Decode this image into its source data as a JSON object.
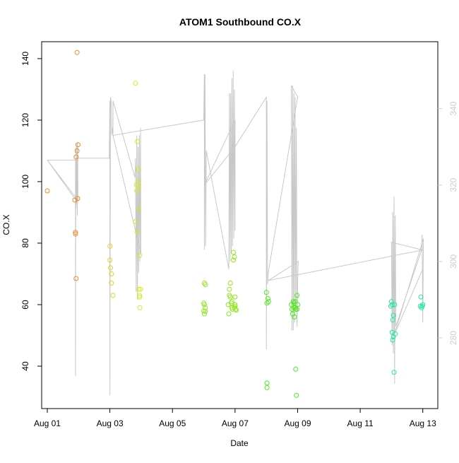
{
  "chart_data": {
    "type": "scatter",
    "title": "ATOM1 Southbound CO.X",
    "xlabel": "Date",
    "ylabel": "CO.X",
    "x_ticks": [
      {
        "day": 1,
        "label": "Aug 01"
      },
      {
        "day": 3,
        "label": "Aug 03"
      },
      {
        "day": 5,
        "label": "Aug 05"
      },
      {
        "day": 7,
        "label": "Aug 07"
      },
      {
        "day": 9,
        "label": "Aug 09"
      },
      {
        "day": 11,
        "label": "Aug 11"
      },
      {
        "day": 13,
        "label": "Aug 13"
      }
    ],
    "xlim": [
      0.82,
      13.48
    ],
    "ylim": [
      26.2,
      145.5
    ],
    "y_ticks": [
      40,
      60,
      80,
      100,
      120,
      140
    ],
    "y2lim": [
      261.5,
      357.5
    ],
    "y2_ticks": [
      280,
      300,
      320,
      340
    ],
    "y2_color": "#cccccc",
    "line_color": "#c8c8c8",
    "grid": false,
    "series": [
      {
        "color": "#f08a2a",
        "points": [
          [
            1.0,
            97
          ],
          [
            1.88,
            94
          ],
          [
            1.9,
            83.5
          ],
          [
            1.9,
            83
          ],
          [
            1.92,
            68.5
          ],
          [
            1.92,
            108
          ],
          [
            1.95,
            110
          ],
          [
            1.95,
            142
          ],
          [
            1.97,
            94.5
          ],
          [
            1.98,
            112
          ]
        ]
      },
      {
        "color": "#eccf1e",
        "points": [
          [
            3.0,
            79
          ],
          [
            3.0,
            74.5
          ],
          [
            3.02,
            72
          ],
          [
            3.05,
            70
          ],
          [
            3.05,
            67
          ],
          [
            3.1,
            63
          ]
        ]
      },
      {
        "color": "#d4ec1e",
        "points": [
          [
            3.82,
            132
          ],
          [
            3.82,
            87
          ],
          [
            3.85,
            99
          ],
          [
            3.86,
            97
          ],
          [
            3.88,
            83.5
          ],
          [
            3.88,
            113
          ],
          [
            3.9,
            104
          ],
          [
            3.92,
            100
          ],
          [
            3.92,
            98
          ],
          [
            3.93,
            91
          ],
          [
            3.95,
            76
          ],
          [
            3.93,
            65
          ],
          [
            3.95,
            63
          ],
          [
            3.95,
            62.5
          ],
          [
            3.96,
            59
          ],
          [
            3.98,
            65
          ]
        ]
      },
      {
        "color": "#8fe81e",
        "points": [
          [
            6.0,
            60.5
          ],
          [
            6.0,
            58
          ],
          [
            6.02,
            60
          ],
          [
            6.02,
            57
          ],
          [
            6.02,
            67
          ],
          [
            6.05,
            59
          ],
          [
            6.05,
            66.5
          ],
          [
            6.05,
            57.8
          ],
          [
            6.78,
            60
          ],
          [
            6.8,
            57
          ],
          [
            6.82,
            63
          ],
          [
            6.82,
            65
          ],
          [
            6.85,
            62.5
          ],
          [
            6.85,
            67
          ],
          [
            6.88,
            60.5
          ],
          [
            6.9,
            59
          ],
          [
            6.9,
            61
          ],
          [
            6.92,
            58.5
          ],
          [
            6.95,
            74.5
          ],
          [
            6.95,
            77
          ],
          [
            6.98,
            59
          ],
          [
            6.98,
            75.5
          ],
          [
            7.0,
            59.5
          ],
          [
            7.0,
            60
          ],
          [
            7.0,
            62.5
          ],
          [
            7.02,
            58.5
          ],
          [
            7.04,
            58.2
          ]
        ]
      },
      {
        "color": "#4ee81e",
        "points": [
          [
            8.0,
            64
          ],
          [
            8.02,
            60.5
          ],
          [
            8.02,
            34.5
          ],
          [
            8.02,
            33
          ],
          [
            8.05,
            62
          ],
          [
            8.07,
            61
          ],
          [
            8.8,
            60
          ],
          [
            8.82,
            58.5
          ],
          [
            8.84,
            57
          ],
          [
            8.86,
            61
          ],
          [
            8.88,
            59
          ],
          [
            8.88,
            60.5
          ],
          [
            8.9,
            56
          ],
          [
            8.92,
            59
          ],
          [
            8.92,
            61
          ],
          [
            8.94,
            58.5
          ],
          [
            8.94,
            39
          ],
          [
            8.96,
            30.5
          ],
          [
            8.98,
            63
          ],
          [
            8.98,
            58.5
          ],
          [
            9.0,
            60
          ]
        ]
      },
      {
        "color": "#1ee8a8",
        "points": [
          [
            11.98,
            59.5
          ],
          [
            12.0,
            61
          ],
          [
            12.02,
            60
          ],
          [
            12.02,
            51
          ],
          [
            12.04,
            55
          ],
          [
            12.04,
            48.5
          ],
          [
            12.06,
            56.5
          ],
          [
            12.06,
            49.5
          ],
          [
            12.08,
            38
          ],
          [
            12.1,
            60
          ],
          [
            12.12,
            50.5
          ],
          [
            12.92,
            59.5
          ],
          [
            12.94,
            62.5
          ],
          [
            12.96,
            59
          ],
          [
            12.98,
            59.5
          ],
          [
            13.0,
            60
          ]
        ]
      }
    ],
    "line_y2": [
      [
        1.0,
        326.5
      ],
      [
        1.02,
        326.5
      ],
      [
        1.9,
        326.5
      ],
      [
        1.9,
        270
      ],
      [
        1.91,
        316
      ],
      [
        1.92,
        330
      ],
      [
        1.92,
        314
      ],
      [
        1.93,
        327
      ],
      [
        1.94,
        315
      ],
      [
        1.95,
        331
      ],
      [
        1.96,
        312
      ],
      [
        1.97,
        331
      ],
      [
        1.98,
        316
      ],
      [
        1.0,
        326.5
      ],
      [
        1.92,
        316
      ],
      [
        1.98,
        327
      ],
      [
        2.98,
        327
      ],
      [
        3.0,
        342
      ],
      [
        3.0,
        265
      ],
      [
        3.02,
        343
      ],
      [
        3.04,
        342
      ],
      [
        3.05,
        340
      ],
      [
        3.06,
        333
      ],
      [
        3.08,
        335
      ],
      [
        3.1,
        333
      ],
      [
        3.1,
        342
      ],
      [
        3.8,
        322
      ],
      [
        3.82,
        327
      ],
      [
        3.84,
        292
      ],
      [
        3.86,
        333
      ],
      [
        3.88,
        290
      ],
      [
        3.9,
        330
      ],
      [
        3.92,
        297
      ],
      [
        3.94,
        333
      ],
      [
        3.96,
        300
      ],
      [
        3.98,
        335
      ],
      [
        3.99,
        302
      ],
      [
        3.1,
        333
      ],
      [
        6.0,
        337
      ],
      [
        6.02,
        349
      ],
      [
        6.02,
        303
      ],
      [
        6.04,
        349
      ],
      [
        6.06,
        304
      ],
      [
        6.08,
        329
      ],
      [
        6.08,
        329
      ],
      [
        6.8,
        298
      ],
      [
        6.82,
        344
      ],
      [
        6.84,
        300
      ],
      [
        6.86,
        344
      ],
      [
        6.88,
        302
      ],
      [
        6.9,
        348
      ],
      [
        6.92,
        304
      ],
      [
        6.94,
        350
      ],
      [
        6.96,
        306
      ],
      [
        6.98,
        345
      ],
      [
        7.0,
        308
      ],
      [
        7.0,
        337
      ],
      [
        6.02,
        320
      ],
      [
        7.0,
        330
      ],
      [
        8.0,
        343
      ],
      [
        8.0,
        277
      ],
      [
        8.02,
        342
      ],
      [
        8.04,
        294
      ],
      [
        8.06,
        297
      ],
      [
        9.0,
        343
      ],
      [
        8.8,
        346
      ],
      [
        8.82,
        282
      ],
      [
        8.84,
        346
      ],
      [
        8.86,
        282
      ],
      [
        8.88,
        344
      ],
      [
        8.9,
        284
      ],
      [
        8.92,
        343
      ],
      [
        8.94,
        288
      ],
      [
        8.96,
        335
      ],
      [
        8.98,
        283
      ],
      [
        9.0,
        295
      ],
      [
        9.02,
        300
      ],
      [
        8.06,
        295
      ],
      [
        13.0,
        303
      ],
      [
        12.0,
        305
      ],
      [
        12.02,
        278
      ],
      [
        12.04,
        313
      ],
      [
        12.06,
        276
      ],
      [
        12.08,
        317
      ],
      [
        12.1,
        268
      ],
      [
        12.12,
        312
      ],
      [
        12.14,
        283
      ],
      [
        12.96,
        303
      ],
      [
        12.98,
        307
      ],
      [
        13.0,
        284
      ],
      [
        13.02,
        306
      ],
      [
        12.1,
        281
      ],
      [
        13.0,
        298
      ]
    ]
  }
}
